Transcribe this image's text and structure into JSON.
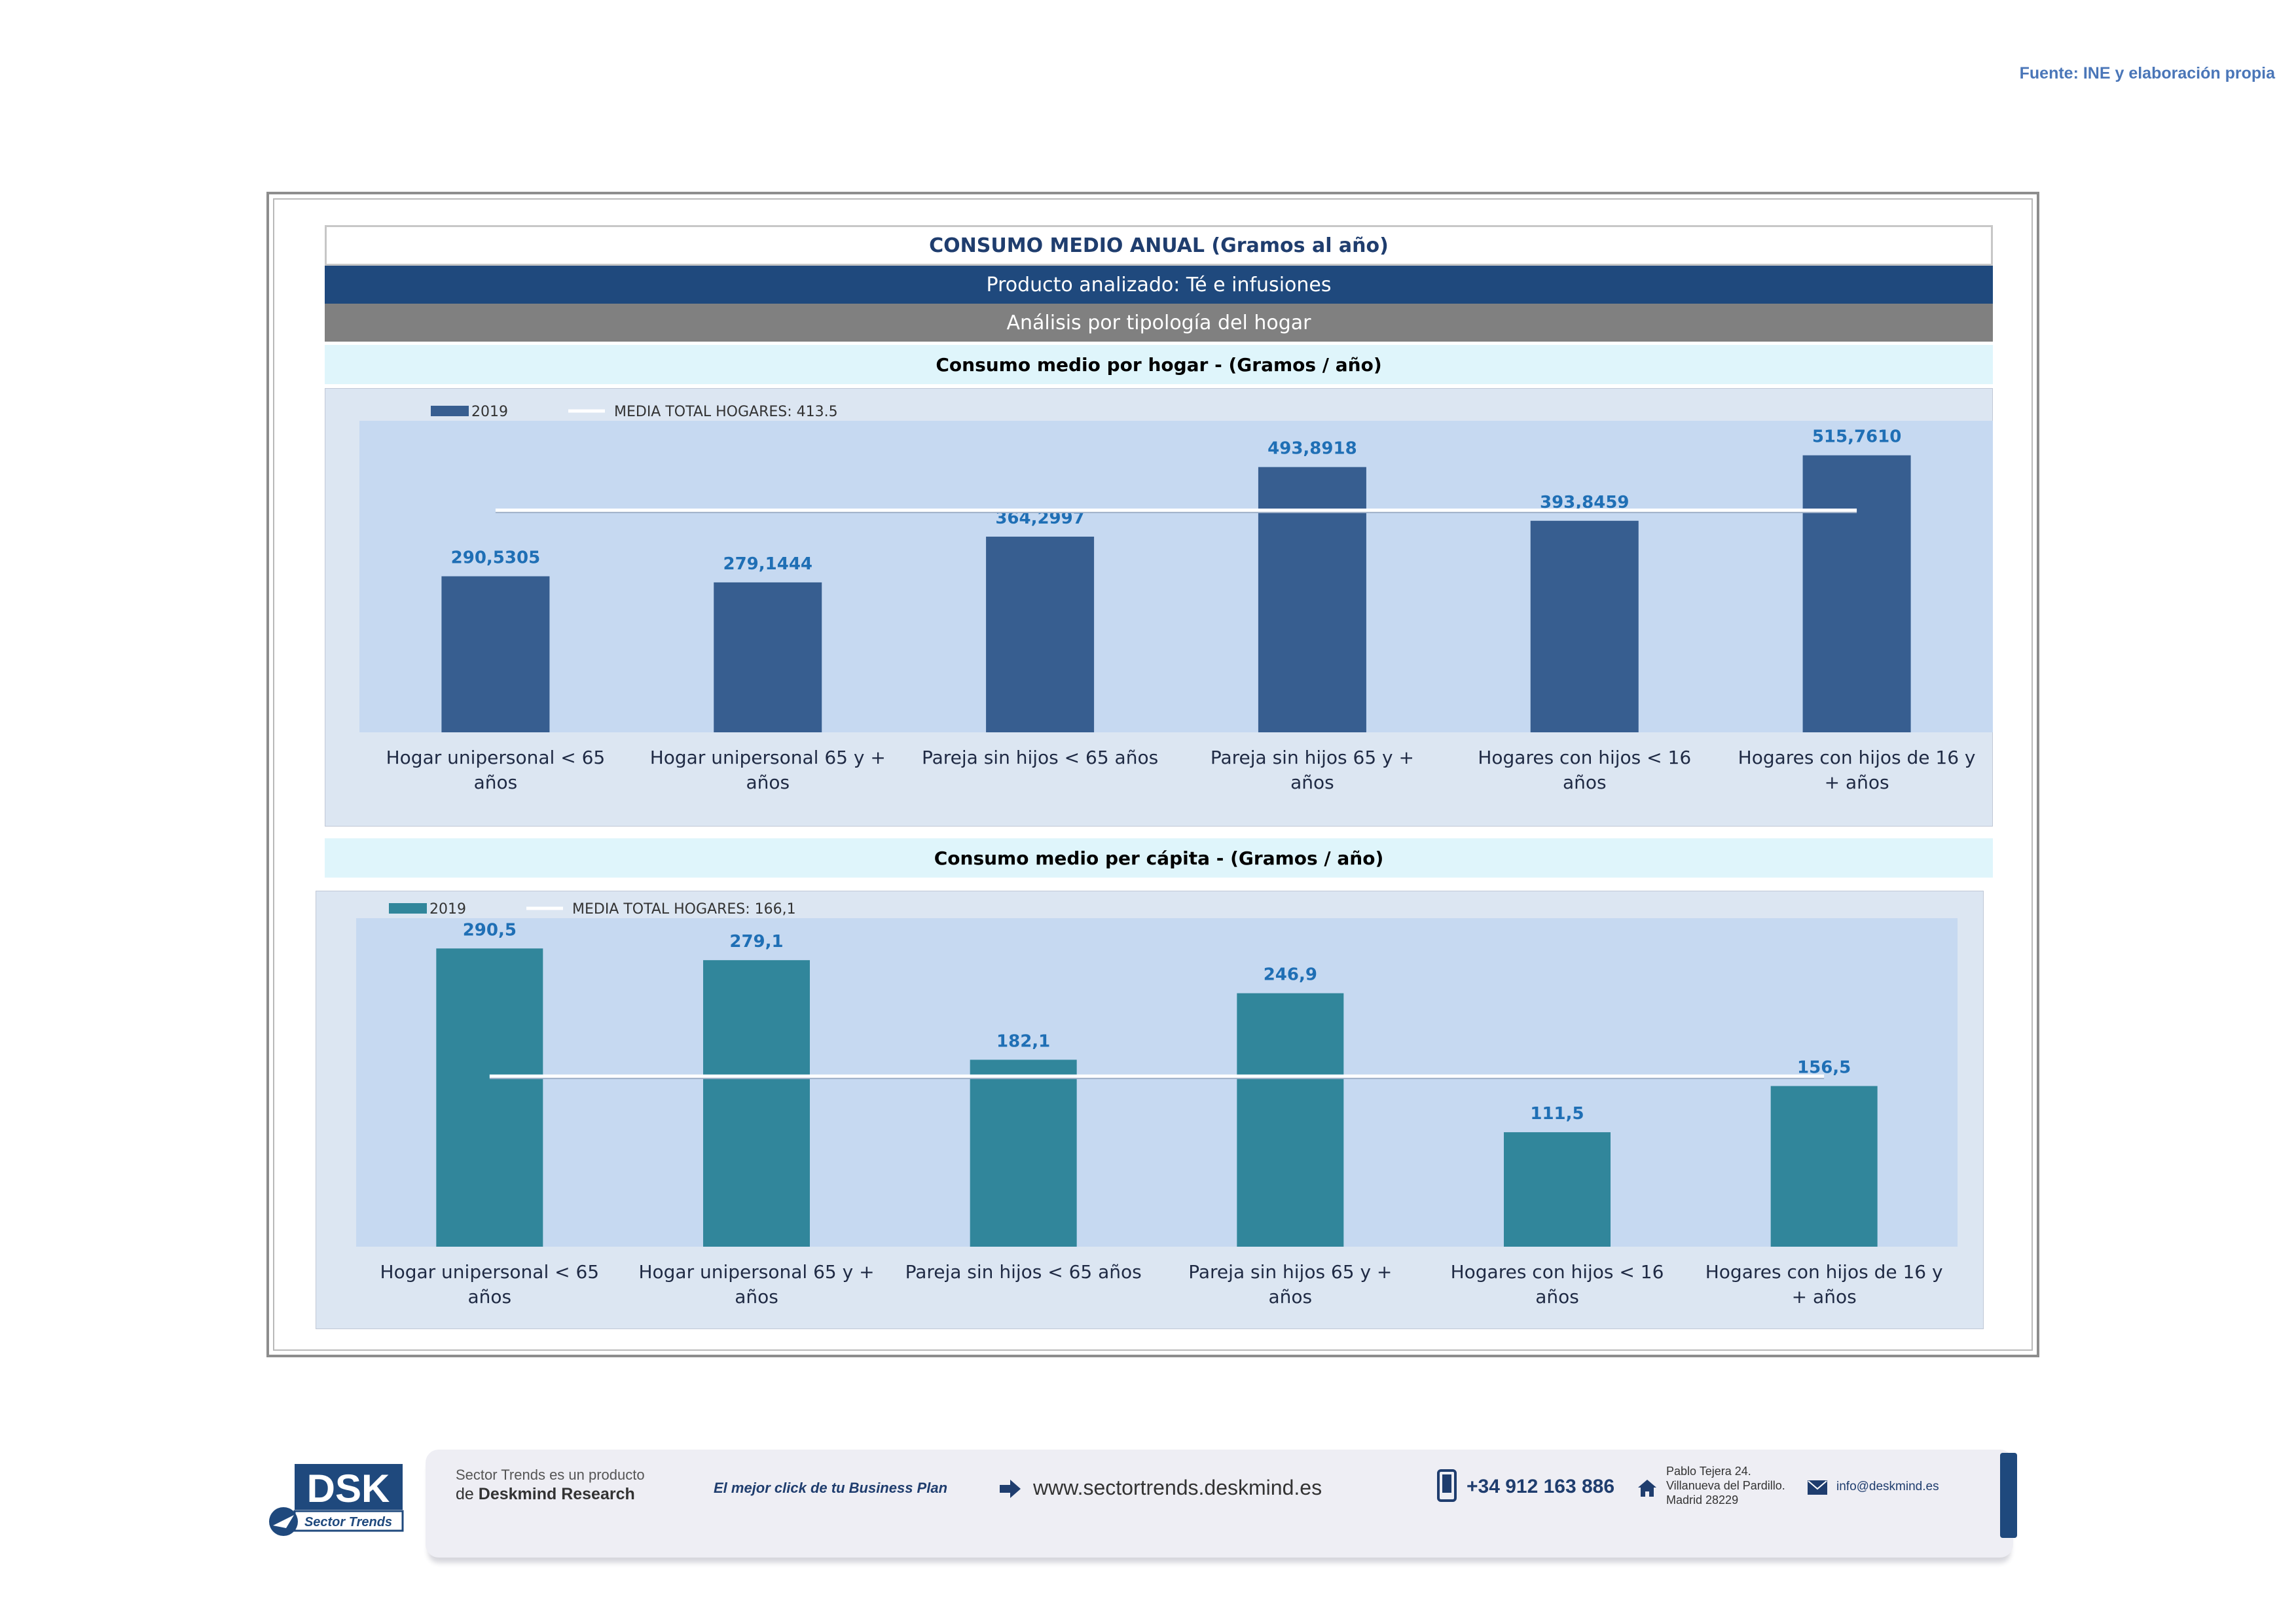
{
  "source": "Fuente: INE y elaboración propia",
  "header": {
    "title": "CONSUMO MEDIO ANUAL (Gramos al año)",
    "product": "Producto analizado: Té e infusiones",
    "analysis": "Análisis por tipología del hogar"
  },
  "colors": {
    "bar1": "#375e90",
    "bar2": "#31869b",
    "plot_bg": "#c6d9f1",
    "outer_bg": "#dce6f2",
    "label": "#1f6fb5",
    "mean_line": "#ffffff"
  },
  "chart_data": [
    {
      "type": "bar",
      "title": "Consumo medio por hogar -  (Gramos / año)",
      "categories": [
        "Hogar unipersonal < 65 años",
        "Hogar unipersonal  65 y + años",
        "Pareja sin hijos < 65 años",
        "Pareja sin hijos 65 y + años",
        "Hogares con hijos < 16 años",
        "Hogares con hijos de 16 y + años"
      ],
      "series": [
        {
          "name": "2019",
          "values": [
            290.5305,
            279.1444,
            364.2997,
            493.8918,
            393.8459,
            515.761
          ]
        }
      ],
      "value_labels": [
        "290,5305",
        "279,1444",
        "364,2997",
        "493,8918",
        "393,8459",
        "515,7610"
      ],
      "reference_line": {
        "name": "MEDIA TOTAL  HOGARES:",
        "value": 413.5,
        "label": "413.5"
      },
      "ylim": [
        0,
        580
      ],
      "legend": "top-left",
      "grid": false
    },
    {
      "type": "bar",
      "title": "Consumo medio per cápita -  (Gramos / año)",
      "categories": [
        "Hogar unipersonal < 65 años",
        "Hogar unipersonal  65 y + años",
        "Pareja sin hijos < 65 años",
        "Pareja sin hijos 65 y + años",
        "Hogares con hijos < 16 años",
        "Hogares con hijos de 16 y + años"
      ],
      "series": [
        {
          "name": "2019",
          "values": [
            290.5,
            279.1,
            182.1,
            246.9,
            111.5,
            156.5
          ]
        }
      ],
      "value_labels": [
        "290,5",
        "279,1",
        "182,1",
        "246,9",
        "111,5",
        "156,5"
      ],
      "reference_line": {
        "name": "MEDIA TOTAL  HOGARES:",
        "value": 166.1,
        "label": "166,1"
      },
      "ylim": [
        0,
        320
      ],
      "legend": "top-left",
      "grid": false
    }
  ],
  "footer": {
    "logo_text": "DSK",
    "logo_sub": "Sector Trends",
    "product_line1": "Sector Trends es un producto",
    "product_line2_prefix": "de ",
    "product_line2_brand": "Deskmind Research",
    "tagline": "El mejor click de tu Business Plan",
    "website": "www.sectortrends.deskmind.es",
    "phone": "+34 912 163 886",
    "address": [
      "Pablo Tejera 24.",
      "Villanueva del Pardillo.",
      "Madrid 28229"
    ],
    "email": "info@deskmind.es"
  }
}
